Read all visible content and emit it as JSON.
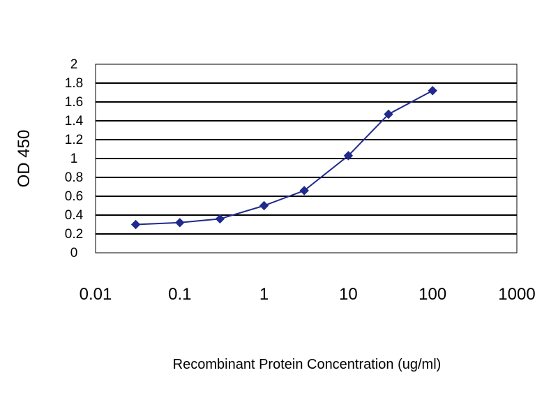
{
  "chart_data": {
    "type": "line",
    "title": "",
    "xlabel": "Recombinant Protein Concentration (ug/ml)",
    "ylabel": "OD 450",
    "x_scale": "log",
    "xlim": [
      0.01,
      1000
    ],
    "ylim": [
      0,
      2
    ],
    "x_ticks": [
      "0.01",
      "0.1",
      "1",
      "10",
      "100",
      "1000"
    ],
    "y_ticks": [
      "0",
      "0.2",
      "0.4",
      "0.6",
      "0.8",
      "1",
      "1.2",
      "1.4",
      "1.6",
      "1.8",
      "2"
    ],
    "grid": true,
    "legend": "none",
    "series": [
      {
        "color": "#1f2a8c",
        "x": [
          0.03,
          0.1,
          0.3,
          1,
          3,
          10,
          30,
          100
        ],
        "y": [
          0.3,
          0.32,
          0.36,
          0.5,
          0.66,
          1.03,
          1.47,
          1.72
        ]
      }
    ]
  }
}
